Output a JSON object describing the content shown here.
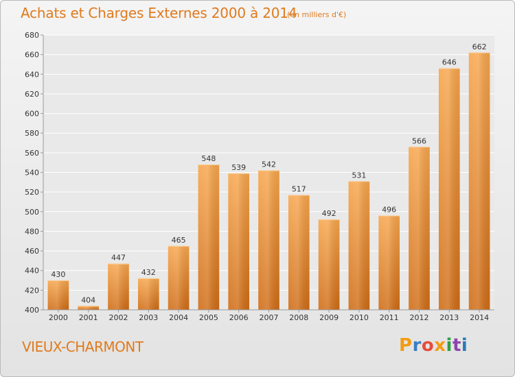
{
  "chart_data": {
    "type": "bar",
    "title": "Achats et Charges Externes 2000 à 2014",
    "subtitle": "(en milliers d'€)",
    "categories": [
      "2000",
      "2001",
      "2002",
      "2003",
      "2004",
      "2005",
      "2006",
      "2007",
      "2008",
      "2009",
      "2010",
      "2011",
      "2012",
      "2013",
      "2014"
    ],
    "values": [
      430,
      404,
      447,
      432,
      465,
      548,
      539,
      542,
      517,
      492,
      531,
      496,
      566,
      646,
      662
    ],
    "ylim": [
      400,
      680
    ],
    "yticks": [
      400,
      420,
      440,
      460,
      480,
      500,
      520,
      540,
      560,
      580,
      600,
      620,
      640,
      660,
      680
    ],
    "grid": true,
    "bar_color": "#f08a2b"
  },
  "footer": {
    "place": "VIEUX-CHARMONT",
    "logo_letters": [
      "P",
      "r",
      "o",
      "x",
      "i",
      "t",
      "i"
    ],
    "logo_colors": [
      "#f39c12",
      "#3b7fc4",
      "#e74c3c",
      "#f39c12",
      "#2e9e3f",
      "#8e44ad",
      "#2a7ab8"
    ]
  }
}
